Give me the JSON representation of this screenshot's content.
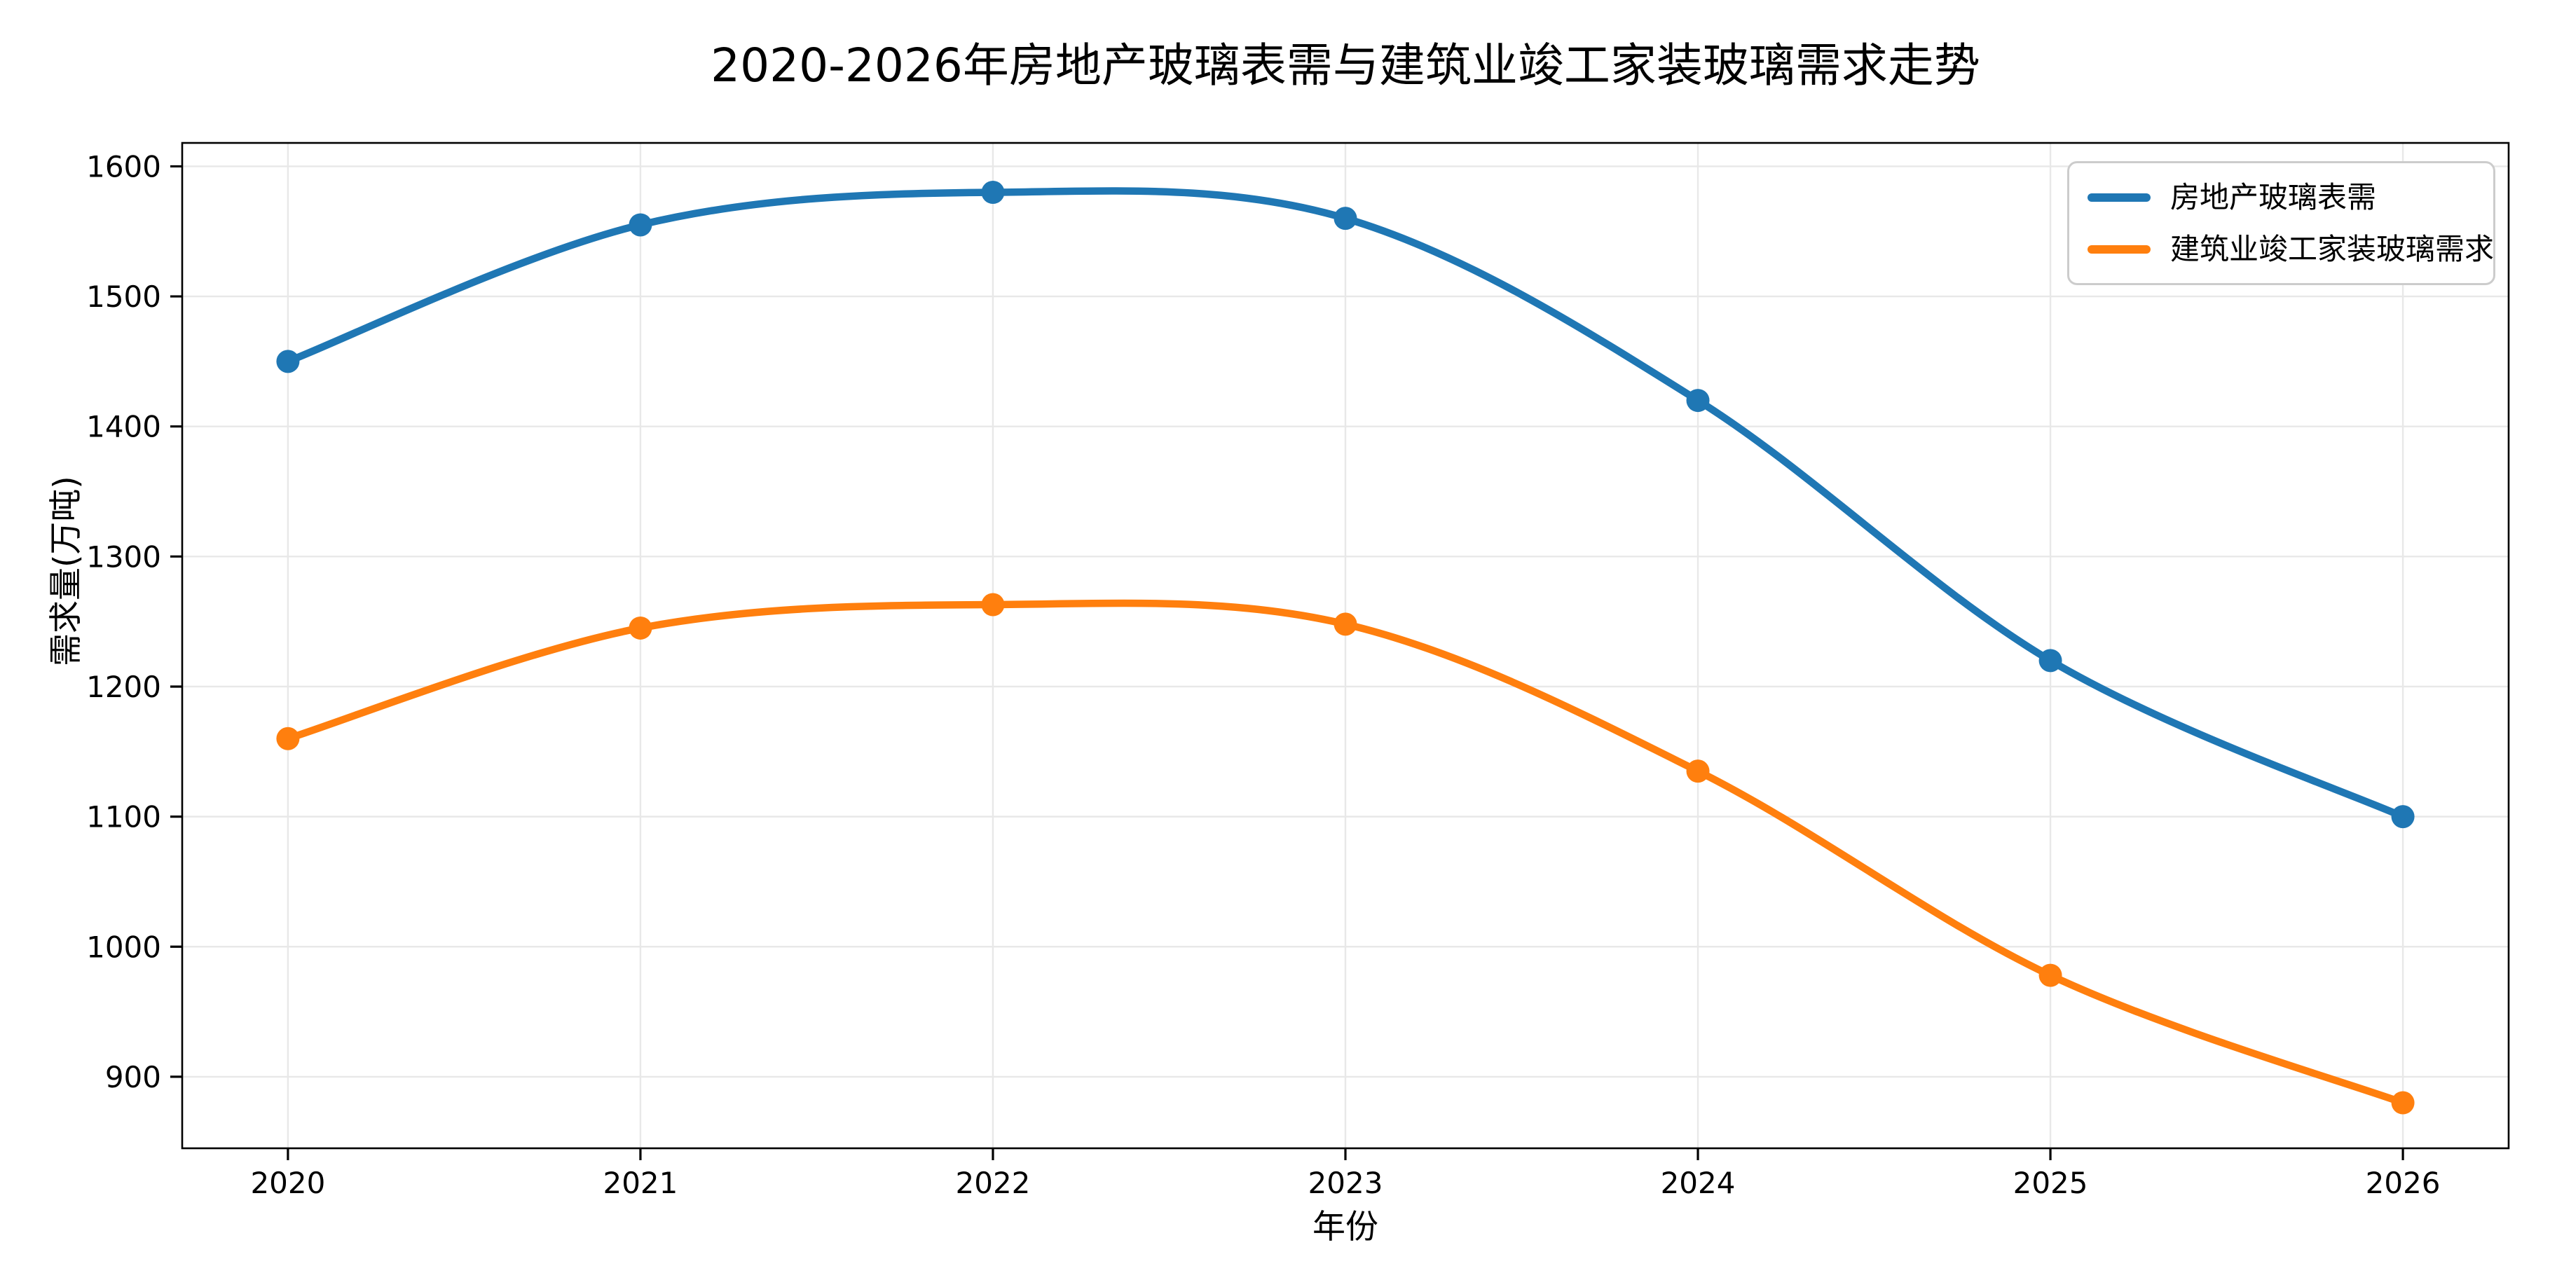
{
  "title": "2020-2026年房地产玻璃表需与建筑业竣工家装玻璃需求走势",
  "chart_data": {
    "type": "line",
    "x": [
      2020,
      2021,
      2022,
      2023,
      2024,
      2025,
      2026
    ],
    "series": [
      {
        "name": "房地产玻璃表需",
        "color": "#1f77b4",
        "values": [
          1450,
          1555,
          1580,
          1560,
          1420,
          1220,
          1100
        ]
      },
      {
        "name": "建筑业竣工家装玻璃需求",
        "color": "#ff7f0e",
        "values": [
          1160,
          1245,
          1263,
          1248,
          1135,
          978,
          880
        ]
      }
    ],
    "xlabel": "年份",
    "ylabel": "需求量(万吨)",
    "x_ticks": [
      2020,
      2021,
      2022,
      2023,
      2024,
      2025,
      2026
    ],
    "y_ticks": [
      900,
      1000,
      1100,
      1200,
      1300,
      1400,
      1500,
      1600
    ],
    "xlim": [
      2019.7,
      2026.3
    ],
    "ylim": [
      845,
      1618
    ],
    "grid": true,
    "smooth": true,
    "marker": "circle",
    "legend_position": "upper right"
  },
  "style": {
    "grid_color": "#e8e8e8",
    "spine_color": "#000000",
    "tick_color": "#000000",
    "background": "#ffffff",
    "legend_border": "#cccccc"
  }
}
